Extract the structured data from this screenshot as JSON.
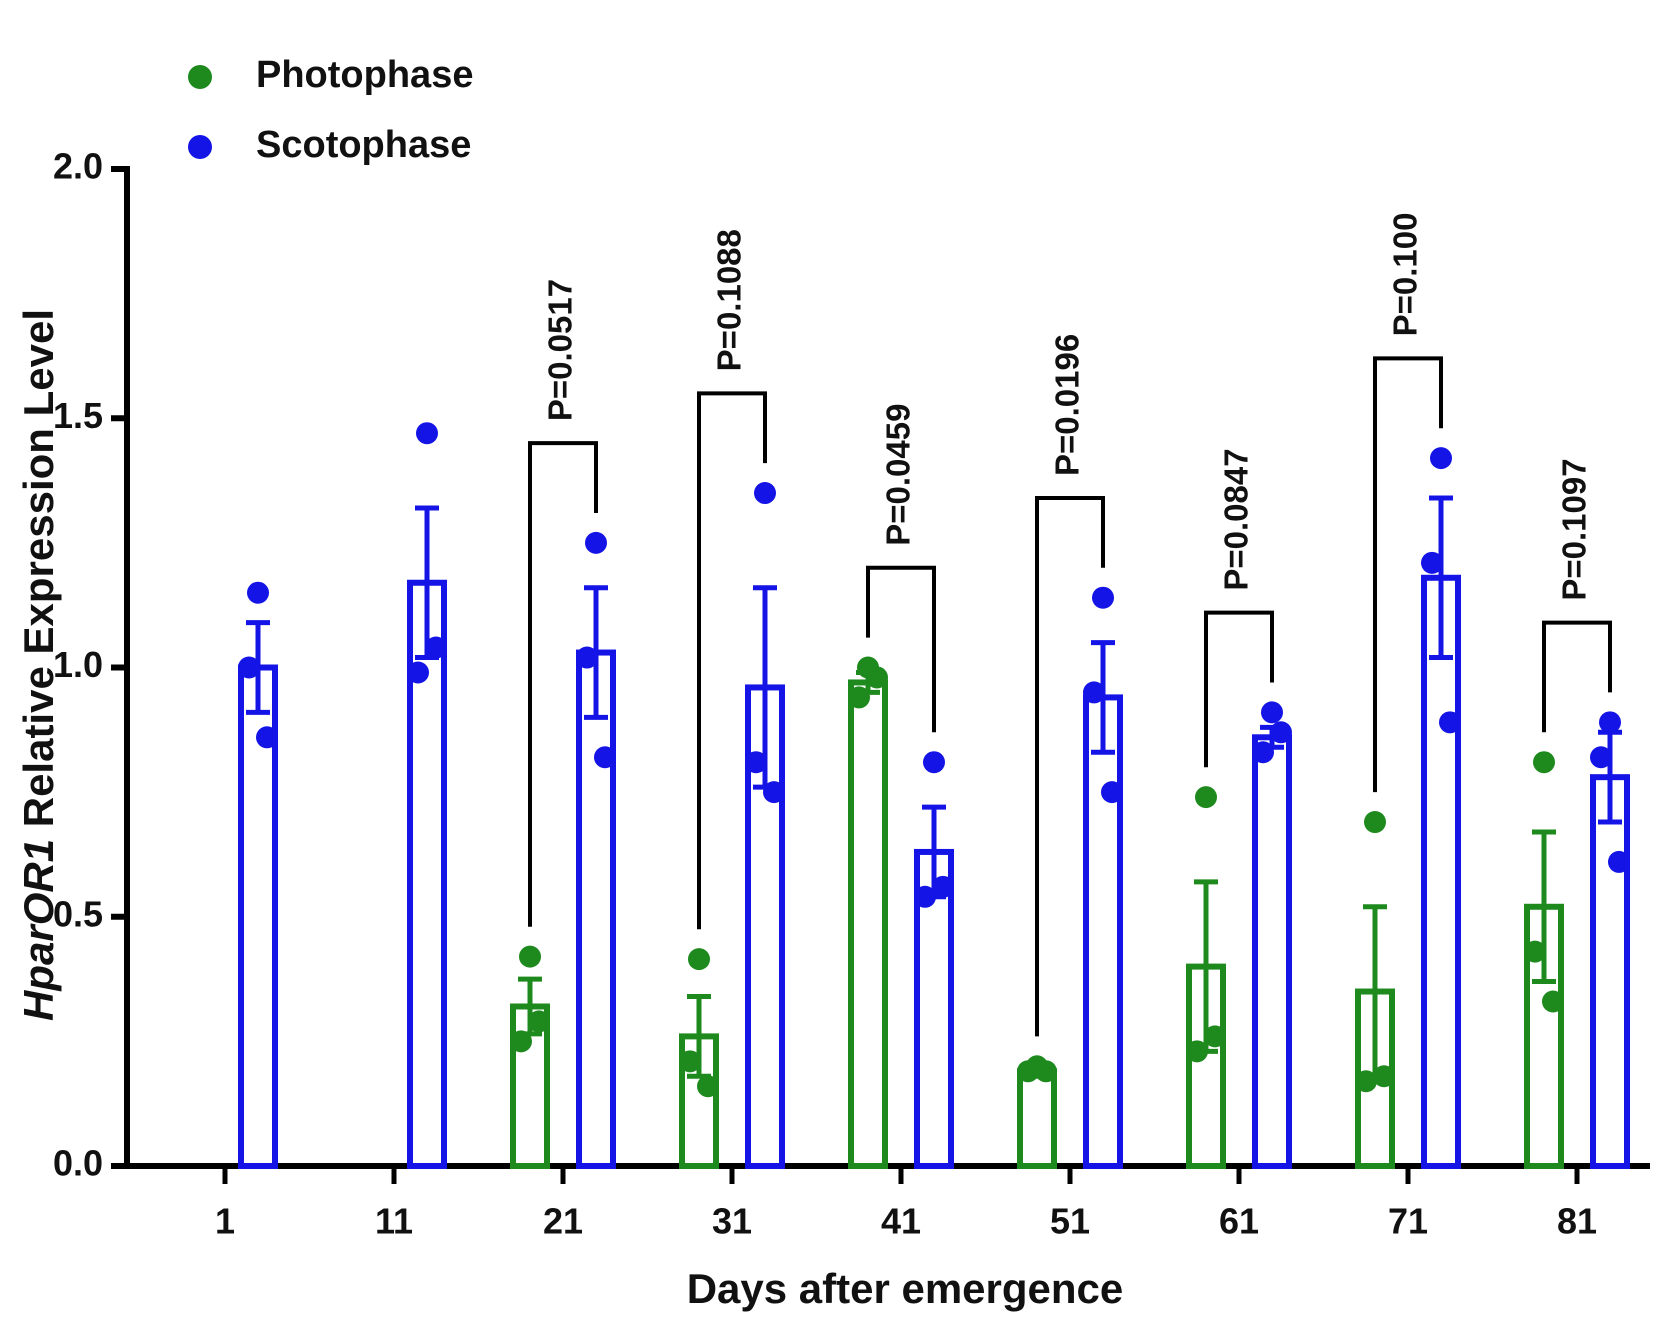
{
  "chart_data": {
    "type": "bar",
    "x_label": "Days after emergence",
    "y_label": {
      "gene": "HparOR1",
      "text": "Relative Expression Level"
    },
    "categories": [
      "1",
      "11",
      "21",
      "31",
      "41",
      "51",
      "61",
      "71",
      "81"
    ],
    "series": [
      {
        "name": "Photophase",
        "color": "#1e8a1e",
        "values": [
          null,
          null,
          0.32,
          0.26,
          0.97,
          0.19,
          0.4,
          0.35,
          0.52
        ],
        "errors": [
          null,
          null,
          0.055,
          0.08,
          0.02,
          0.01,
          0.17,
          0.17,
          0.15
        ],
        "points": [
          null,
          null,
          [
            0.42,
            0.25,
            0.29
          ],
          [
            0.415,
            0.21,
            0.16
          ],
          [
            1.0,
            0.94,
            0.98
          ],
          [
            0.2,
            0.19,
            0.19
          ],
          [
            0.74,
            0.23,
            0.26
          ],
          [
            0.69,
            0.17,
            0.18
          ],
          [
            0.81,
            0.43,
            0.33
          ]
        ]
      },
      {
        "name": "Scotophase",
        "color": "#1414e6",
        "values": [
          1.0,
          1.17,
          1.03,
          0.96,
          0.63,
          0.94,
          0.86,
          1.18,
          0.78
        ],
        "errors": [
          0.09,
          0.15,
          0.13,
          0.2,
          0.09,
          0.11,
          0.02,
          0.16,
          0.09
        ],
        "points": [
          [
            1.15,
            1.0,
            0.86
          ],
          [
            1.47,
            0.99,
            1.04
          ],
          [
            1.25,
            1.02,
            0.82
          ],
          [
            1.35,
            0.81,
            0.75
          ],
          [
            0.81,
            0.54,
            0.56
          ],
          [
            1.14,
            0.95,
            0.75
          ],
          [
            0.91,
            0.83,
            0.87
          ],
          [
            1.42,
            1.21,
            0.89
          ],
          [
            0.89,
            0.82,
            0.61
          ]
        ]
      }
    ],
    "p_values": [
      null,
      null,
      "P=0.0517",
      "P=0.1088",
      "P=0.0459",
      "P=0.0196",
      "P=0.0847",
      "P=0.100",
      "P=0.1097"
    ],
    "ylim": [
      0,
      2
    ],
    "yticks": [
      {
        "value": 0,
        "label": "0.0"
      },
      0.5,
      {
        "value": 1,
        "label": "1.0"
      },
      1.5,
      {
        "value": 2,
        "label": "2.0"
      }
    ],
    "legend": "top-left",
    "grid": false
  }
}
